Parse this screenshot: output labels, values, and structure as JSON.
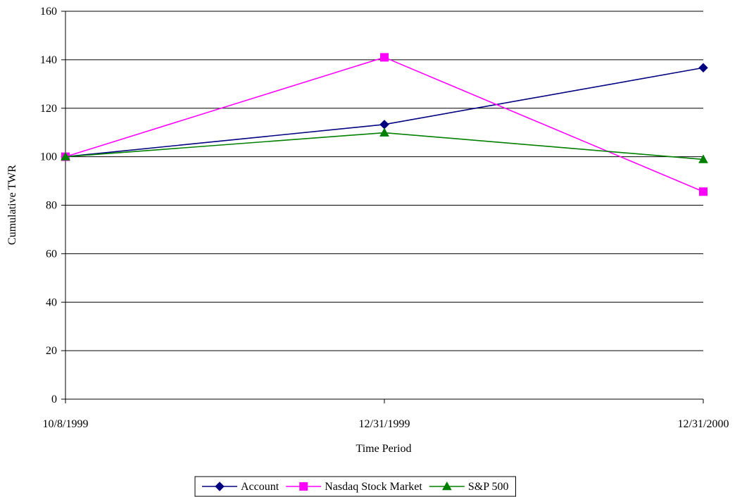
{
  "chart_data": {
    "type": "line",
    "title": "",
    "xlabel": "Time Period",
    "ylabel": "Cumulative TWR",
    "categories": [
      "10/8/1999",
      "12/31/1999",
      "12/31/2000"
    ],
    "ylim": [
      0,
      160
    ],
    "yticks": [
      0,
      20,
      40,
      60,
      80,
      100,
      120,
      140,
      160
    ],
    "grid": true,
    "legend_position": "bottom",
    "series": [
      {
        "name": "Account",
        "values": [
          100,
          113.3,
          136.7
        ],
        "color": "#000080",
        "marker": "diamond"
      },
      {
        "name": "Nasdaq Stock Market",
        "values": [
          100,
          141,
          85.6
        ],
        "color": "#FF00FF",
        "marker": "square"
      },
      {
        "name": "S&P 500",
        "values": [
          100,
          109.9,
          98.9
        ],
        "color": "#008000",
        "marker": "triangle"
      }
    ]
  }
}
